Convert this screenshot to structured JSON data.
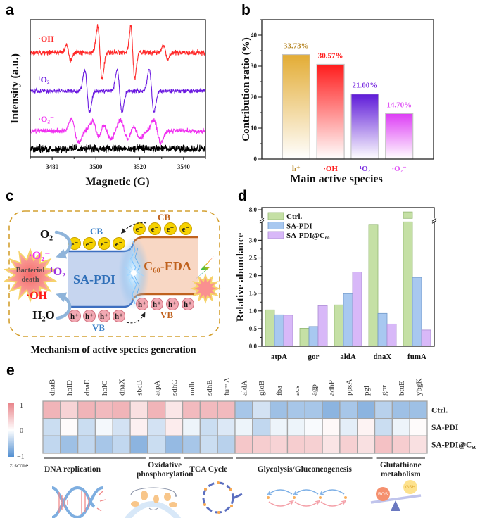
{
  "figure": {
    "panel_labels": {
      "a": "a",
      "b": "b",
      "c": "c",
      "d": "d",
      "e": "e"
    }
  },
  "chart_data": [
    {
      "panel": "a",
      "type": "line",
      "title": "",
      "xlabel": "Magnetic (G)",
      "ylabel": "Intensity (a.u.)",
      "xlim": [
        3470,
        3550
      ],
      "ylim": [
        0,
        10
      ],
      "xticks": [
        3480,
        3500,
        3520,
        3540
      ],
      "xtick_labels": [
        "3480",
        "3500",
        "3520",
        "3540"
      ],
      "x_minor_step": 10,
      "yticks": [],
      "grid": false,
      "series": [
        {
          "name": "·OH",
          "color": "#ff2a2a",
          "offset": 7.6,
          "noise": 0.16,
          "lines": [
            {
              "center": 3487.5,
              "amp": 0.55,
              "width": 0.9
            },
            {
              "center": 3501.8,
              "amp": 1.9,
              "width": 1.0
            },
            {
              "center": 3516.8,
              "amp": 1.9,
              "width": 0.9
            },
            {
              "center": 3531.8,
              "amp": 0.55,
              "width": 0.9
            }
          ]
        },
        {
          "name": "¹O₂",
          "color": "#6a18e0",
          "offset": 4.8,
          "noise": 0.13,
          "lines": [
            {
              "center": 3496.0,
              "amp": 1.55,
              "width": 1.1
            },
            {
              "center": 3510.8,
              "amp": 1.55,
              "width": 1.1
            },
            {
              "center": 3525.4,
              "amp": 1.55,
              "width": 1.1
            }
          ]
        },
        {
          "name": "·O₂⁻",
          "color": "#f030f0",
          "offset": 1.9,
          "noise": 0.16,
          "lines": [
            {
              "center": 3490.4,
              "amp": 0.85,
              "width": 1.6
            },
            {
              "center": 3500.0,
              "amp": 0.7,
              "width": 1.6
            },
            {
              "center": 3505.0,
              "amp": 0.6,
              "width": 1.8
            },
            {
              "center": 3513.0,
              "amp": 0.8,
              "width": 1.8
            },
            {
              "center": 3518.5,
              "amp": 0.55,
              "width": 1.8
            },
            {
              "center": 3528.0,
              "amp": 0.8,
              "width": 1.6
            }
          ]
        },
        {
          "name": "",
          "color": "#000000",
          "offset": 0.6,
          "noise": 0.24,
          "lines": []
        }
      ]
    },
    {
      "panel": "b",
      "type": "bar",
      "title": "",
      "categories": [
        "h⁺",
        "·OH",
        "¹O₂",
        "·O₂⁻"
      ],
      "values": [
        33.73,
        30.57,
        21.0,
        14.7
      ],
      "data_labels": [
        "33.73%",
        "30.57%",
        "21.00%",
        "14.70%"
      ],
      "colors": [
        "#e3ac34",
        "#ff1c1c",
        "#5e1ad8",
        "#dd3cf5"
      ],
      "label_colors": [
        "#b8892a",
        "#ff1c1c",
        "#7b2fe0",
        "#e055f5"
      ],
      "xlabel": "Main active species",
      "ylabel": "Contribution ratio (%)",
      "ylim": [
        0,
        45
      ],
      "yticks": [
        0,
        10,
        20,
        30,
        40
      ],
      "ytick_labels": [
        "0",
        "10",
        "20",
        "30",
        "40"
      ],
      "y_minor_step": 5,
      "grid": false
    },
    {
      "panel": "d",
      "type": "bar",
      "title": "",
      "categories": [
        "atpA",
        "gor",
        "aldA",
        "dnaX",
        "fumA"
      ],
      "series": [
        {
          "name": "Ctrl.",
          "color": "#c5e0a5",
          "edge": "#93b873",
          "values": [
            1.03,
            0.51,
            1.17,
            3.45,
            7.95
          ]
        },
        {
          "name": "SA-PDI",
          "color": "#a8c8f0",
          "edge": "#7198c8",
          "values": [
            0.89,
            0.56,
            1.49,
            0.93,
            1.95
          ]
        },
        {
          "name": "SA-PDI@C₆₀",
          "color": "#d8b8f8",
          "edge": "#a98ad0",
          "values": [
            0.88,
            1.15,
            2.1,
            0.63,
            0.46
          ]
        }
      ],
      "xlabel": "",
      "ylabel": "Relative abundance",
      "ylim": [
        0,
        8.05
      ],
      "axis_break": [
        3.56,
        7.8
      ],
      "yticks": [
        0.0,
        0.5,
        1.0,
        1.5,
        2.0,
        2.5,
        3.0,
        8.0
      ],
      "ytick_labels": [
        "0.0",
        "0.5",
        "1.0",
        "1.5",
        "2.0",
        "2.5",
        "3.0",
        "8.0"
      ],
      "y_minor_step": 0.25,
      "legend": "top-left",
      "grid": false
    },
    {
      "panel": "e",
      "type": "heatmap",
      "title": "",
      "columns": [
        "dnaB",
        "holD",
        "dnaE",
        "holC",
        "dnaX",
        "sbcB",
        "atpA",
        "sdhC",
        "mdh",
        "sdhE",
        "fumA",
        "aldA",
        "gloB",
        "fba",
        "acs",
        "agp",
        "adhP",
        "ppsA",
        "pgi",
        "gor",
        "btuE",
        "ybgK"
      ],
      "rows": [
        "Ctrl.",
        "SA-PDI",
        "SA-PDI@C₆₀"
      ],
      "values": [
        [
          0.6,
          0.35,
          0.6,
          0.55,
          0.6,
          0.25,
          0.6,
          0.2,
          0.55,
          0.55,
          0.55,
          -0.5,
          -0.25,
          -0.55,
          -0.5,
          -0.5,
          -0.65,
          -0.5,
          -0.65,
          -0.4,
          -0.55,
          -0.55
        ],
        [
          -0.3,
          0.03,
          -0.3,
          -0.06,
          -0.25,
          0.12,
          -0.25,
          0.15,
          -0.1,
          -0.3,
          -0.2,
          -0.1,
          -0.35,
          -0.1,
          -0.1,
          -0.04,
          0.06,
          -0.15,
          0.1,
          -0.3,
          -0.1,
          0.03
        ],
        [
          -0.35,
          -0.55,
          -0.35,
          -0.5,
          -0.35,
          -0.65,
          -0.3,
          -0.6,
          -0.5,
          -0.3,
          -0.4,
          0.45,
          0.4,
          0.35,
          0.4,
          0.38,
          0.22,
          0.38,
          0.25,
          0.5,
          0.4,
          0.25
        ]
      ],
      "colorbar": {
        "min": -1,
        "max": 1,
        "tick_labels": [
          "1",
          "0",
          "−1"
        ],
        "label": "z score",
        "low_color": "#4e8cd0",
        "mid_color": "#ffffff",
        "high_color": "#e88288"
      },
      "groups": [
        {
          "label": [
            "DNA replication"
          ],
          "start": 0,
          "end": 5
        },
        {
          "label": [
            "Oxidative",
            "phosphorylation"
          ],
          "start": 6,
          "end": 7
        },
        {
          "label": [
            "TCA Cycle"
          ],
          "start": 8,
          "end": 10
        },
        {
          "label": [
            "Glycolysis/Gluconeogenesis"
          ],
          "start": 11,
          "end": 18
        },
        {
          "label": [
            "Glutathione",
            "metabolism"
          ],
          "start": 19,
          "end": 21
        }
      ],
      "pathway_icons": [
        "dna-helix",
        "membrane-complex",
        "tca-cycle",
        "glycolysis-cycle",
        "ros-gsh-balance"
      ],
      "icon_text": {
        "ros": "ROS",
        "gsh": "GSH"
      }
    }
  ],
  "mechanism": {
    "caption": "Mechanism of active species generation",
    "o2": "O₂",
    "h2o": "H₂O",
    "superoxide": "·O₂⁻",
    "singlet_oxygen": "¹O₂",
    "hydroxyl": "·OH",
    "bacterial_death": [
      "Bacterial",
      "death"
    ],
    "sa_pdi": {
      "name": "SA-PDI",
      "cb": "CB",
      "vb": "VB",
      "electrons": 4,
      "holes": 4
    },
    "c60_eda": {
      "name": "C₆₀-EDA",
      "cb": "CB",
      "vb": "VB",
      "electrons": 4,
      "holes": 4
    },
    "electron_label": "e⁻",
    "hole_label": "h⁺",
    "colors": {
      "sa_pdi": "#2f6fb8",
      "c60_eda": "#c0621e",
      "superoxide": "#f030f0",
      "singlet_oxygen": "#9b30e0",
      "hydroxyl": "#ff1a1a",
      "border": "#d4a030"
    }
  }
}
